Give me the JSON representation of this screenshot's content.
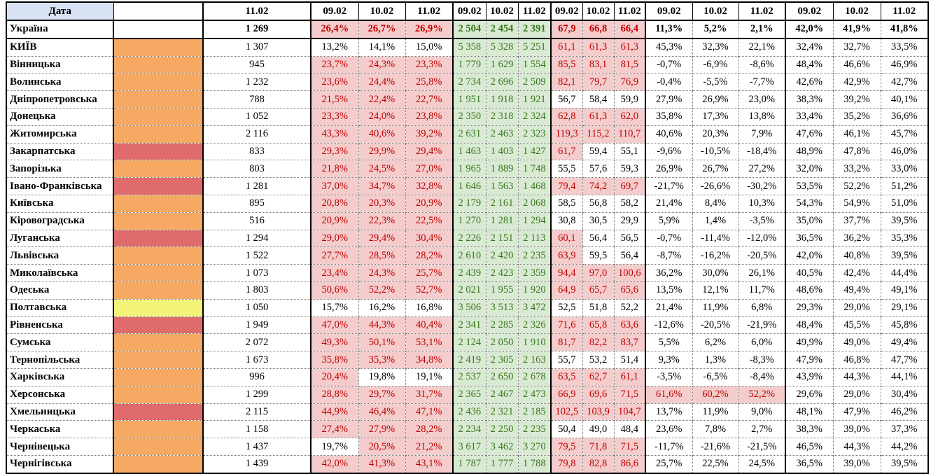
{
  "table": {
    "header": {
      "date_label": "Дата",
      "total_date": "11.02",
      "group_dates": [
        "09.02",
        "10.02",
        "11.02"
      ]
    },
    "legend_colors": {
      "orange": "#F5A962",
      "red": "#DF6B6B",
      "yellow": "#F3F379",
      "none": "#FFFFFF",
      "header_blue": "#D9E2F3",
      "pink_bg": "#F4CCCC",
      "red_text": "#C00000",
      "green_bg": "#D9EAD3",
      "green_text": "#38761D"
    },
    "format_thresholds": {
      "pct1_highlight_min": 20,
      "num_red_highlight_min": 60,
      "pct2_highlight_min": 50
    },
    "rows": [
      {
        "name": "Україна",
        "bold": true,
        "level_color": "none",
        "total": "1 269",
        "pct1": [
          "26,4%",
          "26,7%",
          "26,9%"
        ],
        "num_green": [
          "2 504",
          "2 454",
          "2 391"
        ],
        "num_red": [
          "67,9",
          "66,8",
          "66,4"
        ],
        "pct2": [
          "11,3%",
          "5,2%",
          "2,1%"
        ],
        "pct3": [
          "42,0%",
          "41,9%",
          "41,8%"
        ]
      },
      {
        "name": "КИЇВ",
        "bold": false,
        "level_color": "orange",
        "total": "1 307",
        "pct1": [
          "13,2%",
          "14,1%",
          "15,0%"
        ],
        "num_green": [
          "5 358",
          "5 328",
          "5 251"
        ],
        "num_red": [
          "61,1",
          "61,3",
          "61,3"
        ],
        "pct2": [
          "45,3%",
          "32,3%",
          "22,1%"
        ],
        "pct3": [
          "32,4%",
          "32,7%",
          "33,5%"
        ]
      },
      {
        "name": "Вінницька",
        "bold": false,
        "level_color": "orange",
        "total": "945",
        "pct1": [
          "23,7%",
          "24,3%",
          "23,3%"
        ],
        "num_green": [
          "1 779",
          "1 629",
          "1 554"
        ],
        "num_red": [
          "85,5",
          "83,1",
          "81,5"
        ],
        "pct2": [
          "-0,7%",
          "-6,9%",
          "-8,6%"
        ],
        "pct3": [
          "48,4%",
          "46,6%",
          "46,9%"
        ]
      },
      {
        "name": "Волинська",
        "bold": false,
        "level_color": "orange",
        "total": "1 232",
        "pct1": [
          "23,6%",
          "24,4%",
          "25,8%"
        ],
        "num_green": [
          "2 734",
          "2 696",
          "2 509"
        ],
        "num_red": [
          "82,1",
          "79,7",
          "76,9"
        ],
        "pct2": [
          "-0,4%",
          "-5,5%",
          "-7,7%"
        ],
        "pct3": [
          "42,6%",
          "42,9%",
          "42,7%"
        ]
      },
      {
        "name": "Дніпропетровська",
        "bold": false,
        "level_color": "orange",
        "total": "788",
        "pct1": [
          "21,5%",
          "22,4%",
          "22,7%"
        ],
        "num_green": [
          "1 951",
          "1 918",
          "1 921"
        ],
        "num_red": [
          "56,7",
          "58,4",
          "59,9"
        ],
        "pct2": [
          "27,9%",
          "26,9%",
          "23,0%"
        ],
        "pct3": [
          "38,3%",
          "39,2%",
          "40,1%"
        ]
      },
      {
        "name": "Донецька",
        "bold": false,
        "level_color": "orange",
        "total": "1 052",
        "pct1": [
          "23,3%",
          "24,0%",
          "23,8%"
        ],
        "num_green": [
          "2 350",
          "2 318",
          "2 324"
        ],
        "num_red": [
          "62,8",
          "61,3",
          "62,0"
        ],
        "pct2": [
          "35,8%",
          "17,3%",
          "13,8%"
        ],
        "pct3": [
          "33,4%",
          "35,2%",
          "36,6%"
        ]
      },
      {
        "name": "Житомирська",
        "bold": false,
        "level_color": "orange",
        "total": "2 116",
        "pct1": [
          "43,3%",
          "40,6%",
          "39,2%"
        ],
        "num_green": [
          "2 631",
          "2 463",
          "2 323"
        ],
        "num_red": [
          "119,3",
          "115,2",
          "110,7"
        ],
        "pct2": [
          "40,6%",
          "20,3%",
          "7,9%"
        ],
        "pct3": [
          "47,6%",
          "46,1%",
          "45,7%"
        ]
      },
      {
        "name": "Закарпатська",
        "bold": false,
        "level_color": "red",
        "total": "833",
        "pct1": [
          "29,3%",
          "29,9%",
          "29,4%"
        ],
        "num_green": [
          "1 463",
          "1 403",
          "1 427"
        ],
        "num_red": [
          "61,7",
          "59,4",
          "55,1"
        ],
        "pct2": [
          "-9,6%",
          "-10,5%",
          "-18,4%"
        ],
        "pct3": [
          "48,9%",
          "47,8%",
          "46,0%"
        ]
      },
      {
        "name": "Запорізька",
        "bold": false,
        "level_color": "orange",
        "total": "803",
        "pct1": [
          "21,8%",
          "24,5%",
          "27,0%"
        ],
        "num_green": [
          "1 965",
          "1 889",
          "1 748"
        ],
        "num_red": [
          "55,5",
          "57,6",
          "59,3"
        ],
        "pct2": [
          "26,9%",
          "26,7%",
          "27,2%"
        ],
        "pct3": [
          "32,0%",
          "33,2%",
          "33,0%"
        ]
      },
      {
        "name": "Івано-Франківська",
        "bold": false,
        "level_color": "red",
        "total": "1 281",
        "pct1": [
          "37,0%",
          "34,7%",
          "32,8%"
        ],
        "num_green": [
          "1 646",
          "1 563",
          "1 468"
        ],
        "num_red": [
          "79,4",
          "74,2",
          "69,7"
        ],
        "pct2": [
          "-21,7%",
          "-26,6%",
          "-30,2%"
        ],
        "pct3": [
          "53,5%",
          "52,2%",
          "51,2%"
        ]
      },
      {
        "name": "Київська",
        "bold": false,
        "level_color": "orange",
        "total": "895",
        "pct1": [
          "20,8%",
          "20,3%",
          "20,9%"
        ],
        "num_green": [
          "2 179",
          "2 161",
          "2 068"
        ],
        "num_red": [
          "58,5",
          "56,8",
          "58,2"
        ],
        "pct2": [
          "21,4%",
          "8,4%",
          "10,3%"
        ],
        "pct3": [
          "54,3%",
          "54,9%",
          "51,0%"
        ]
      },
      {
        "name": "Кіровоградська",
        "bold": false,
        "level_color": "orange",
        "total": "516",
        "pct1": [
          "20,9%",
          "22,3%",
          "22,5%"
        ],
        "num_green": [
          "1 270",
          "1 281",
          "1 294"
        ],
        "num_red": [
          "30,8",
          "30,5",
          "29,9"
        ],
        "pct2": [
          "5,9%",
          "1,4%",
          "-3,5%"
        ],
        "pct3": [
          "35,0%",
          "37,7%",
          "39,5%"
        ]
      },
      {
        "name": "Луганська",
        "bold": false,
        "level_color": "red",
        "total": "1 294",
        "pct1": [
          "29,0%",
          "29,4%",
          "30,4%"
        ],
        "num_green": [
          "2 226",
          "2 151",
          "2 113"
        ],
        "num_red": [
          "60,1",
          "56,4",
          "56,5"
        ],
        "pct2": [
          "-0,7%",
          "-11,4%",
          "-12,0%"
        ],
        "pct3": [
          "36,5%",
          "36,2%",
          "35,3%"
        ]
      },
      {
        "name": "Львівська",
        "bold": false,
        "level_color": "orange",
        "total": "1 522",
        "pct1": [
          "27,7%",
          "28,5%",
          "28,2%"
        ],
        "num_green": [
          "2 610",
          "2 420",
          "2 235"
        ],
        "num_red": [
          "63,9",
          "59,5",
          "56,4"
        ],
        "pct2": [
          "-8,7%",
          "-16,2%",
          "-20,5%"
        ],
        "pct3": [
          "42,0%",
          "40,8%",
          "39,5%"
        ]
      },
      {
        "name": "Миколаївська",
        "bold": false,
        "level_color": "orange",
        "total": "1 073",
        "pct1": [
          "23,4%",
          "24,3%",
          "25,7%"
        ],
        "num_green": [
          "2 439",
          "2 423",
          "2 359"
        ],
        "num_red": [
          "94,4",
          "97,0",
          "100,6"
        ],
        "pct2": [
          "36,2%",
          "30,0%",
          "26,1%"
        ],
        "pct3": [
          "40,5%",
          "42,4%",
          "44,4%"
        ]
      },
      {
        "name": "Одеська",
        "bold": false,
        "level_color": "orange",
        "total": "1 803",
        "pct1": [
          "50,6%",
          "52,2%",
          "52,7%"
        ],
        "num_green": [
          "2 021",
          "1 955",
          "1 920"
        ],
        "num_red": [
          "64,9",
          "65,7",
          "65,6"
        ],
        "pct2": [
          "13,5%",
          "12,1%",
          "11,7%"
        ],
        "pct3": [
          "48,6%",
          "49,4%",
          "49,1%"
        ]
      },
      {
        "name": "Полтавська",
        "bold": false,
        "level_color": "yellow",
        "total": "1 050",
        "pct1": [
          "15,7%",
          "16,2%",
          "16,8%"
        ],
        "num_green": [
          "3 506",
          "3 513",
          "3 472"
        ],
        "num_red": [
          "52,5",
          "51,8",
          "52,2"
        ],
        "pct2": [
          "21,4%",
          "11,9%",
          "6,8%"
        ],
        "pct3": [
          "29,3%",
          "29,0%",
          "29,1%"
        ]
      },
      {
        "name": "Рівненська",
        "bold": false,
        "level_color": "red",
        "total": "1 949",
        "pct1": [
          "47,0%",
          "44,3%",
          "40,4%"
        ],
        "num_green": [
          "2 341",
          "2 285",
          "2 326"
        ],
        "num_red": [
          "71,6",
          "65,8",
          "63,6"
        ],
        "pct2": [
          "-12,6%",
          "-20,5%",
          "-21,9%"
        ],
        "pct3": [
          "48,4%",
          "45,5%",
          "45,8%"
        ]
      },
      {
        "name": "Сумська",
        "bold": false,
        "level_color": "orange",
        "total": "2 072",
        "pct1": [
          "49,3%",
          "50,1%",
          "53,1%"
        ],
        "num_green": [
          "2 124",
          "2 050",
          "1 910"
        ],
        "num_red": [
          "81,7",
          "82,2",
          "83,7"
        ],
        "pct2": [
          "5,5%",
          "6,2%",
          "6,0%"
        ],
        "pct3": [
          "49,9%",
          "49,0%",
          "49,4%"
        ]
      },
      {
        "name": "Тернопільська",
        "bold": false,
        "level_color": "orange",
        "total": "1 673",
        "pct1": [
          "35,8%",
          "35,3%",
          "34,8%"
        ],
        "num_green": [
          "2 419",
          "2 305",
          "2 163"
        ],
        "num_red": [
          "55,7",
          "53,2",
          "51,4"
        ],
        "pct2": [
          "9,3%",
          "1,3%",
          "-8,3%"
        ],
        "pct3": [
          "47,9%",
          "46,8%",
          "47,7%"
        ]
      },
      {
        "name": "Харківська",
        "bold": false,
        "level_color": "orange",
        "total": "996",
        "pct1": [
          "20,4%",
          "19,8%",
          "19,1%"
        ],
        "num_green": [
          "2 537",
          "2 650",
          "2 678"
        ],
        "num_red": [
          "63,5",
          "62,7",
          "61,1"
        ],
        "pct2": [
          "-3,5%",
          "-6,5%",
          "-8,4%"
        ],
        "pct3": [
          "43,9%",
          "44,3%",
          "44,1%"
        ]
      },
      {
        "name": "Херсонська",
        "bold": false,
        "level_color": "orange",
        "total": "1 299",
        "pct1": [
          "28,8%",
          "29,7%",
          "31,7%"
        ],
        "num_green": [
          "2 365",
          "2 467",
          "2 473"
        ],
        "num_red": [
          "66,9",
          "69,6",
          "71,5"
        ],
        "pct2": [
          "61,6%",
          "60,2%",
          "52,2%"
        ],
        "pct3": [
          "29,6%",
          "29,0%",
          "30,4%"
        ]
      },
      {
        "name": "Хмельницька",
        "bold": false,
        "level_color": "red",
        "total": "2 115",
        "pct1": [
          "44,9%",
          "46,4%",
          "47,1%"
        ],
        "num_green": [
          "2 436",
          "2 321",
          "2 185"
        ],
        "num_red": [
          "102,5",
          "103,9",
          "104,7"
        ],
        "pct2": [
          "13,7%",
          "11,9%",
          "9,0%"
        ],
        "pct3": [
          "48,1%",
          "47,9%",
          "46,2%"
        ]
      },
      {
        "name": "Черкаська",
        "bold": false,
        "level_color": "orange",
        "total": "1 158",
        "pct1": [
          "27,4%",
          "27,9%",
          "28,2%"
        ],
        "num_green": [
          "2 234",
          "2 250",
          "2 235"
        ],
        "num_red": [
          "50,4",
          "49,0",
          "48,4"
        ],
        "pct2": [
          "23,6%",
          "7,8%",
          "2,7%"
        ],
        "pct3": [
          "38,3%",
          "39,0%",
          "37,3%"
        ]
      },
      {
        "name": "Чернівецька",
        "bold": false,
        "level_color": "orange",
        "total": "1 437",
        "pct1": [
          "19,7%",
          "20,5%",
          "21,2%"
        ],
        "num_green": [
          "3 617",
          "3 462",
          "3 270"
        ],
        "num_red": [
          "79,5",
          "71,8",
          "71,5"
        ],
        "pct2": [
          "-11,7%",
          "-21,6%",
          "-21,5%"
        ],
        "pct3": [
          "46,5%",
          "44,3%",
          "44,2%"
        ]
      },
      {
        "name": "Чернігівська",
        "bold": false,
        "level_color": "orange",
        "total": "1 439",
        "pct1": [
          "42,0%",
          "41,3%",
          "43,1%"
        ],
        "num_green": [
          "1 787",
          "1 777",
          "1 788"
        ],
        "num_red": [
          "79,8",
          "82,8",
          "86,6"
        ],
        "pct2": [
          "25,7%",
          "22,5%",
          "24,5%"
        ],
        "pct3": [
          "36,5%",
          "39,0%",
          "39,5%"
        ]
      }
    ]
  }
}
